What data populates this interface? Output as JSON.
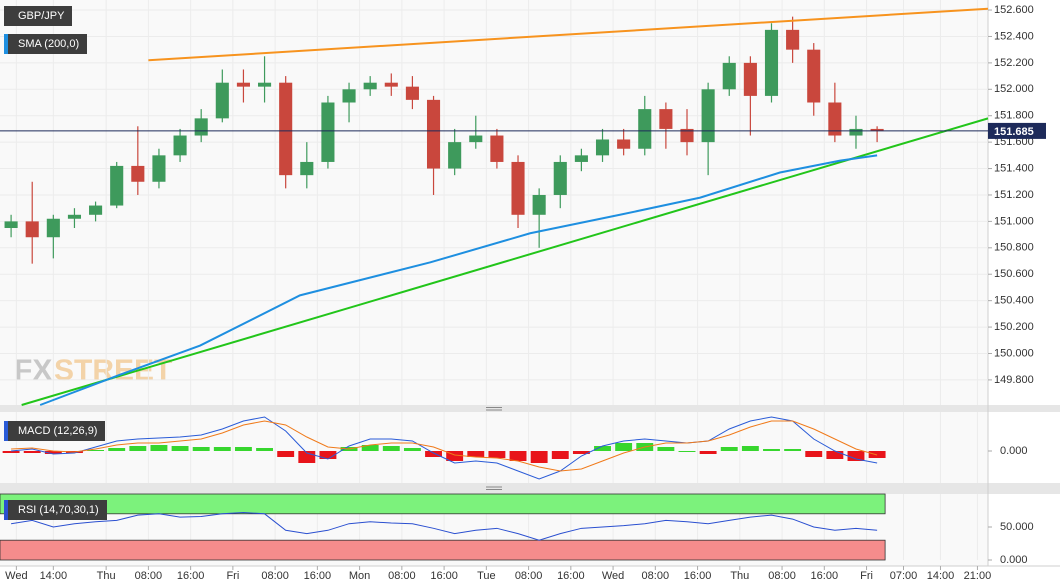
{
  "chart_data": [
    {
      "type": "candlestick",
      "title": "GBP/JPY",
      "x": [
        6,
        10,
        14,
        18,
        22,
        26,
        30,
        34,
        38,
        42,
        46,
        50,
        54,
        58,
        62,
        66,
        70,
        74,
        78,
        82,
        86,
        90,
        94,
        98,
        102,
        106,
        110,
        114,
        118,
        122,
        126,
        130,
        134,
        138,
        142,
        146,
        150,
        154,
        158,
        162,
        166,
        170
      ],
      "open": [
        150.95,
        151.0,
        150.88,
        151.02,
        151.05,
        151.12,
        151.42,
        151.3,
        151.5,
        151.65,
        151.78,
        152.05,
        152.02,
        152.05,
        151.35,
        151.45,
        151.9,
        152.0,
        152.05,
        152.02,
        151.92,
        151.4,
        151.6,
        151.65,
        151.45,
        151.05,
        151.2,
        151.45,
        151.5,
        151.62,
        151.55,
        151.85,
        151.7,
        151.6,
        152.0,
        152.2,
        151.95,
        152.45,
        152.3,
        151.9,
        151.65,
        151.7
      ],
      "high": [
        151.05,
        151.3,
        151.05,
        151.1,
        151.15,
        151.45,
        151.72,
        151.55,
        151.7,
        151.85,
        152.15,
        152.15,
        152.25,
        152.1,
        151.6,
        151.95,
        152.05,
        152.1,
        152.12,
        152.1,
        151.95,
        151.7,
        151.8,
        151.7,
        151.5,
        151.25,
        151.5,
        151.55,
        151.7,
        151.7,
        151.95,
        151.9,
        151.85,
        152.05,
        152.25,
        152.25,
        152.5,
        152.55,
        152.35,
        152.05,
        151.8,
        151.72
      ],
      "low": [
        150.88,
        150.68,
        150.72,
        150.95,
        151.0,
        151.1,
        151.2,
        151.25,
        151.45,
        151.6,
        151.75,
        151.9,
        151.9,
        151.25,
        151.25,
        151.4,
        151.75,
        151.95,
        151.95,
        151.85,
        151.2,
        151.35,
        151.55,
        151.4,
        150.95,
        150.8,
        151.1,
        151.38,
        151.45,
        151.5,
        151.5,
        151.55,
        151.5,
        151.35,
        151.95,
        151.65,
        151.9,
        152.2,
        151.8,
        151.6,
        151.55,
        151.6
      ],
      "close": [
        151.0,
        150.88,
        151.02,
        151.05,
        151.12,
        151.42,
        151.3,
        151.5,
        151.65,
        151.78,
        152.05,
        152.02,
        152.05,
        151.35,
        151.45,
        151.9,
        152.0,
        152.05,
        152.02,
        151.92,
        151.4,
        151.6,
        151.65,
        151.45,
        151.05,
        151.2,
        151.45,
        151.5,
        151.62,
        151.55,
        151.85,
        151.7,
        151.6,
        152.0,
        152.2,
        151.95,
        152.45,
        152.3,
        151.9,
        151.65,
        151.7,
        151.685
      ],
      "colors": {
        "up": "#3e9a5c",
        "down": "#c9473d"
      },
      "xlim": [
        3.9,
        191
      ],
      "xticks": [
        {
          "value": 7,
          "label": "Wed"
        },
        {
          "value": 14,
          "label": "14:00"
        },
        {
          "value": 24,
          "label": "Thu"
        },
        {
          "value": 32,
          "label": "08:00"
        },
        {
          "value": 40,
          "label": "16:00"
        },
        {
          "value": 48,
          "label": "Fri"
        },
        {
          "value": 56,
          "label": "08:00"
        },
        {
          "value": 64,
          "label": "16:00"
        },
        {
          "value": 72,
          "label": "Mon"
        },
        {
          "value": 80,
          "label": "08:00"
        },
        {
          "value": 88,
          "label": "16:00"
        },
        {
          "value": 96,
          "label": "Tue"
        },
        {
          "value": 104,
          "label": "08:00"
        },
        {
          "value": 112,
          "label": "16:00"
        },
        {
          "value": 120,
          "label": "Wed"
        },
        {
          "value": 128,
          "label": "08:00"
        },
        {
          "value": 136,
          "label": "16:00"
        },
        {
          "value": 144,
          "label": "Thu"
        },
        {
          "value": 152,
          "label": "08:00"
        },
        {
          "value": 160,
          "label": "16:00"
        },
        {
          "value": 168,
          "label": "Fri"
        },
        {
          "value": 175,
          "label": "07:00"
        },
        {
          "value": 182,
          "label": "14:00"
        },
        {
          "value": 189,
          "label": "21:00"
        }
      ],
      "ylim": [
        149.61,
        152.676
      ],
      "yticks": [
        {
          "value": 152.6,
          "label": "152.600"
        },
        {
          "value": 152.4,
          "label": "152.400"
        },
        {
          "value": 152.2,
          "label": "152.200"
        },
        {
          "value": 152.0,
          "label": "152.000"
        },
        {
          "value": 151.8,
          "label": "151.800"
        },
        {
          "value": 151.6,
          "label": "151.600"
        },
        {
          "value": 151.4,
          "label": "151.400"
        },
        {
          "value": 151.2,
          "label": "151.200"
        },
        {
          "value": 151.0,
          "label": "151.000"
        },
        {
          "value": 150.8,
          "label": "150.800"
        },
        {
          "value": 150.6,
          "label": "150.600"
        },
        {
          "value": 150.4,
          "label": "150.400"
        },
        {
          "value": 150.2,
          "label": "150.200"
        },
        {
          "value": 150.0,
          "label": "150.000"
        },
        {
          "value": 149.8,
          "label": "149.800"
        }
      ],
      "grid": true,
      "overlays": [
        {
          "name": "SMA (200,0)",
          "color": "#1e8fe0",
          "x": [
            11.5,
            26.7,
            41.8,
            60.7,
            85.4,
            104.3,
            121.3,
            136.5,
            151.6,
            163,
            170
          ],
          "values": [
            149.61,
            149.84,
            150.06,
            150.44,
            150.69,
            150.91,
            151.05,
            151.18,
            151.37,
            151.46,
            151.5
          ]
        }
      ],
      "trendlines": [
        {
          "color": "#f7931e",
          "x": [
            32,
            191
          ],
          "values": [
            152.22,
            152.61
          ]
        },
        {
          "color": "#22c51a",
          "x": [
            8,
            191
          ],
          "values": [
            149.61,
            151.78
          ]
        }
      ],
      "last_price": {
        "value": 151.685,
        "label": "151.685"
      },
      "watermark": {
        "fx": "FX",
        "street": "STREET"
      }
    },
    {
      "type": "macd",
      "title": "MACD (12,26,9)",
      "x": [
        6,
        10,
        14,
        18,
        22,
        26,
        30,
        34,
        38,
        42,
        46,
        50,
        54,
        58,
        62,
        66,
        70,
        74,
        78,
        82,
        86,
        90,
        94,
        98,
        102,
        106,
        110,
        114,
        118,
        122,
        126,
        130,
        134,
        138,
        142,
        146,
        150,
        154,
        158,
        162,
        166,
        170
      ],
      "histogram": [
        -0.002,
        -0.002,
        -0.003,
        -0.002,
        0.001,
        0.003,
        0.005,
        0.006,
        0.005,
        0.004,
        0.004,
        0.004,
        0.003,
        -0.006,
        -0.012,
        -0.008,
        0.004,
        0.006,
        0.005,
        0.003,
        -0.006,
        -0.01,
        -0.006,
        -0.007,
        -0.01,
        -0.012,
        -0.008,
        -0.003,
        0.005,
        0.008,
        0.008,
        0.004,
        0.0,
        -0.003,
        0.004,
        0.005,
        0.002,
        0.002,
        -0.006,
        -0.008,
        -0.01,
        -0.007
      ],
      "histogram_colors": {
        "up": "#37d62e",
        "down": "#e8141a"
      },
      "series": [
        {
          "color": "#2a5bd7",
          "values": [
            0.0,
            0.002,
            -0.003,
            -0.002,
            0.004,
            0.01,
            0.012,
            0.013,
            0.014,
            0.016,
            0.022,
            0.03,
            0.034,
            0.02,
            -0.002,
            -0.008,
            0.005,
            0.012,
            0.012,
            0.01,
            -0.002,
            -0.012,
            -0.01,
            -0.012,
            -0.02,
            -0.028,
            -0.02,
            -0.005,
            0.005,
            0.01,
            0.012,
            0.01,
            0.008,
            0.01,
            0.022,
            0.03,
            0.034,
            0.03,
            0.012,
            0.0,
            -0.008,
            -0.012
          ]
        },
        {
          "color": "#f07a1a",
          "values": [
            0.002,
            0.003,
            0.0,
            -0.001,
            0.002,
            0.006,
            0.008,
            0.008,
            0.01,
            0.012,
            0.018,
            0.026,
            0.03,
            0.026,
            0.014,
            0.004,
            0.002,
            0.006,
            0.008,
            0.008,
            0.004,
            -0.004,
            -0.006,
            -0.007,
            -0.01,
            -0.016,
            -0.02,
            -0.018,
            -0.01,
            -0.002,
            0.004,
            0.008,
            0.008,
            0.01,
            0.016,
            0.024,
            0.03,
            0.03,
            0.022,
            0.012,
            0.002,
            -0.004
          ]
        }
      ],
      "ylim": [
        -0.032,
        0.039
      ],
      "yticks": [
        {
          "value": 0,
          "label": "0.000"
        }
      ]
    },
    {
      "type": "rsi",
      "title": "RSI (14,70,30,1)",
      "x": [
        6,
        10,
        14,
        18,
        22,
        26,
        30,
        34,
        38,
        42,
        46,
        50,
        54,
        58,
        62,
        66,
        70,
        74,
        78,
        82,
        86,
        90,
        94,
        98,
        102,
        106,
        110,
        114,
        118,
        122,
        126,
        130,
        134,
        138,
        142,
        146,
        150,
        154,
        158,
        162,
        166,
        170
      ],
      "values": [
        55,
        60,
        50,
        55,
        58,
        60,
        68,
        70,
        65,
        66,
        70,
        72,
        70,
        45,
        40,
        45,
        55,
        58,
        56,
        55,
        48,
        40,
        45,
        48,
        40,
        30,
        40,
        48,
        50,
        52,
        55,
        60,
        58,
        55,
        60,
        65,
        68,
        62,
        50,
        45,
        48,
        45
      ],
      "color": "#2a4fd0",
      "bands": [
        {
          "from": 70,
          "to": 100,
          "color": "#7cf27c"
        },
        {
          "from": 0,
          "to": 30,
          "color": "#f58c8c"
        }
      ],
      "ylim": [
        0,
        100
      ],
      "yticks": [
        {
          "value": 50,
          "label": "50.000"
        },
        {
          "value": 0,
          "label": "0.000"
        }
      ]
    }
  ]
}
